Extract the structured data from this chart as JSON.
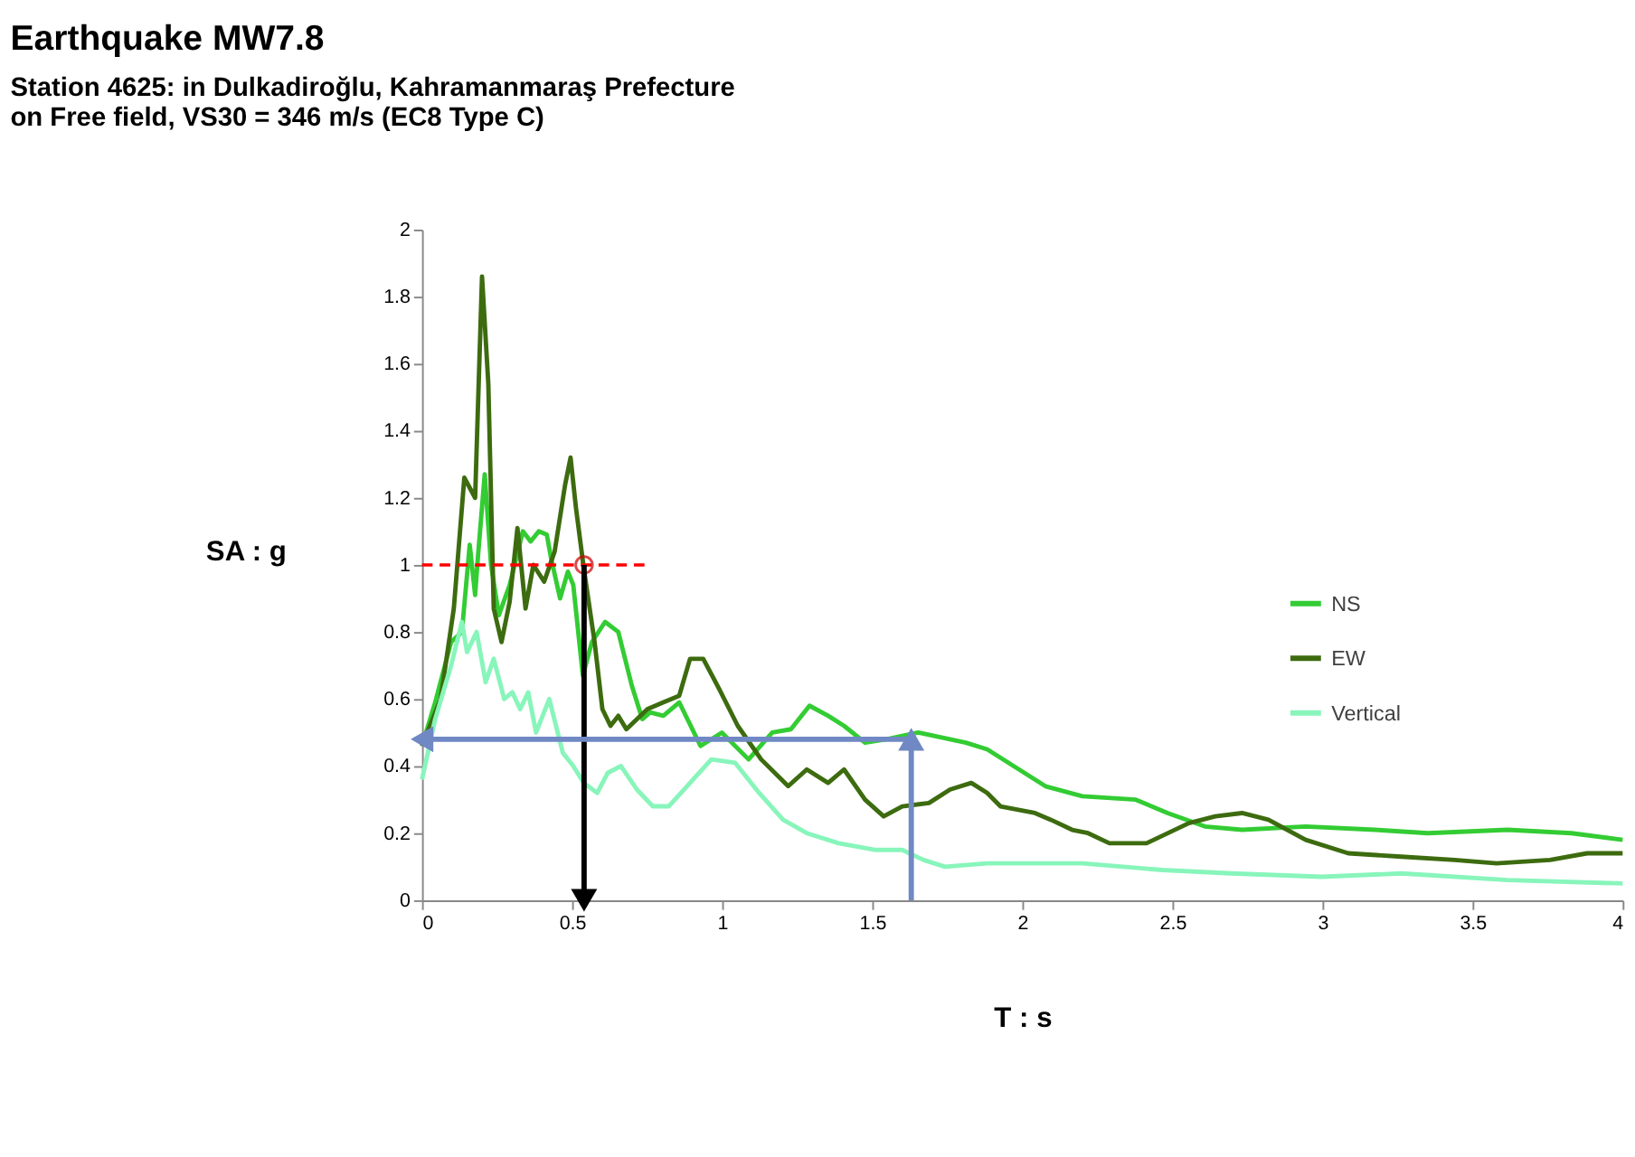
{
  "chart_data": {
    "type": "line",
    "title": "Earthquake MW7.8",
    "subtitle": [
      "Station 4625: in Dulkadiroğlu, Kahramanmaraş Prefecture",
      "on Free field, VS30 = 346 m/s (EC8 Type C)"
    ],
    "xlabel": "T : s",
    "ylabel": "SA : g",
    "xlim": [
      0,
      4
    ],
    "xticks": [
      0,
      0.5,
      1,
      1.5,
      2,
      2.5,
      3,
      3.5,
      4
    ],
    "ylim": [
      0,
      2
    ],
    "yticks": [
      0,
      0.2,
      0.4,
      0.6,
      0.8,
      1,
      1.2,
      1.4,
      1.6,
      1.8,
      2
    ],
    "grid": false,
    "legend": "right",
    "marker": "none",
    "line_style": "solid",
    "series": [
      {
        "name": "NS",
        "color": "#33cc33",
        "x": [
          0,
          0.044,
          0.097,
          0.133,
          0.159,
          0.177,
          0.186,
          0.209,
          0.23,
          0.256,
          0.292,
          0.336,
          0.362,
          0.389,
          0.416,
          0.43,
          0.46,
          0.486,
          0.504,
          0.536,
          0.566,
          0.61,
          0.654,
          0.699,
          0.734,
          0.76,
          0.804,
          0.857,
          0.928,
          0.999,
          1.088,
          1.167,
          1.229,
          1.291,
          1.353,
          1.406,
          1.476,
          1.547,
          1.653,
          1.812,
          1.883,
          1.971,
          2.077,
          2.2,
          2.378,
          2.484,
          2.608,
          2.732,
          2.944,
          3.175,
          3.351,
          3.617,
          3.829,
          4
        ],
        "values": [
          0.46,
          0.59,
          0.77,
          0.8,
          1.06,
          0.91,
          1.02,
          1.27,
          1.0,
          0.85,
          0.94,
          1.1,
          1.07,
          1.1,
          1.09,
          1.02,
          0.9,
          0.98,
          0.94,
          0.67,
          0.77,
          0.83,
          0.8,
          0.64,
          0.54,
          0.56,
          0.55,
          0.59,
          0.46,
          0.5,
          0.42,
          0.5,
          0.51,
          0.58,
          0.55,
          0.52,
          0.47,
          0.48,
          0.5,
          0.47,
          0.45,
          0.4,
          0.34,
          0.31,
          0.3,
          0.26,
          0.22,
          0.21,
          0.22,
          0.21,
          0.2,
          0.21,
          0.2,
          0.18
        ]
      },
      {
        "name": "EW",
        "color": "#3d6b0f",
        "x": [
          0,
          0.062,
          0.106,
          0.141,
          0.177,
          0.2,
          0.221,
          0.239,
          0.265,
          0.292,
          0.318,
          0.345,
          0.371,
          0.407,
          0.442,
          0.477,
          0.495,
          0.513,
          0.539,
          0.575,
          0.601,
          0.628,
          0.654,
          0.681,
          0.751,
          0.804,
          0.857,
          0.893,
          0.937,
          0.99,
          1.052,
          1.13,
          1.22,
          1.282,
          1.353,
          1.406,
          1.476,
          1.538,
          1.6,
          1.689,
          1.759,
          1.83,
          1.883,
          1.927,
          2.042,
          2.095,
          2.166,
          2.219,
          2.29,
          2.414,
          2.555,
          2.643,
          2.732,
          2.82,
          2.944,
          3.086,
          3.263,
          3.44,
          3.58,
          3.758,
          3.882,
          4
        ],
        "values": [
          0.46,
          0.6,
          0.87,
          1.26,
          1.2,
          1.86,
          1.54,
          0.87,
          0.77,
          0.89,
          1.11,
          0.87,
          1.0,
          0.95,
          1.04,
          1.24,
          1.32,
          1.17,
          0.99,
          0.77,
          0.57,
          0.52,
          0.55,
          0.51,
          0.57,
          0.59,
          0.61,
          0.72,
          0.72,
          0.63,
          0.52,
          0.42,
          0.34,
          0.39,
          0.35,
          0.39,
          0.3,
          0.25,
          0.28,
          0.29,
          0.33,
          0.35,
          0.32,
          0.28,
          0.26,
          0.24,
          0.21,
          0.2,
          0.17,
          0.17,
          0.23,
          0.25,
          0.26,
          0.24,
          0.18,
          0.14,
          0.13,
          0.12,
          0.11,
          0.12,
          0.14,
          0.14
        ]
      },
      {
        "name": "Vertical",
        "color": "#88f5bb",
        "x": [
          0,
          0.044,
          0.097,
          0.133,
          0.15,
          0.182,
          0.212,
          0.239,
          0.274,
          0.301,
          0.327,
          0.354,
          0.38,
          0.424,
          0.469,
          0.504,
          0.539,
          0.584,
          0.619,
          0.663,
          0.716,
          0.769,
          0.822,
          0.893,
          0.964,
          1.043,
          1.123,
          1.203,
          1.282,
          1.388,
          1.512,
          1.6,
          1.671,
          1.742,
          1.883,
          2.06,
          2.2,
          2.467,
          2.696,
          2.997,
          3.263,
          3.617,
          4
        ],
        "values": [
          0.36,
          0.54,
          0.7,
          0.83,
          0.74,
          0.8,
          0.65,
          0.72,
          0.6,
          0.62,
          0.57,
          0.62,
          0.5,
          0.6,
          0.44,
          0.4,
          0.35,
          0.32,
          0.38,
          0.4,
          0.33,
          0.28,
          0.28,
          0.35,
          0.42,
          0.41,
          0.32,
          0.24,
          0.2,
          0.17,
          0.15,
          0.15,
          0.12,
          0.1,
          0.11,
          0.11,
          0.11,
          0.09,
          0.08,
          0.07,
          0.08,
          0.06,
          0.05
        ]
      },
      {
        "type": "line",
        "color": "#ff0000",
        "line_style": "dashed",
        "x": [
          0,
          0.75
        ],
        "values": [
          1,
          1
        ]
      },
      {
        "type": "scatter",
        "color": "#cc0000",
        "marker": "circle",
        "x": [
          0.54
        ],
        "values": [
          1
        ]
      },
      {
        "type": "line",
        "color": "#000000",
        "marker": "triangle",
        "x": [
          0.54,
          0.54
        ],
        "values": [
          1,
          0
        ]
      },
      {
        "type": "line",
        "color": "#7088c4",
        "marker": "triangle",
        "x": [
          1.63,
          1.63
        ],
        "values": [
          0,
          0.48
        ]
      },
      {
        "type": "line",
        "color": "#7088c4",
        "marker": "triangle",
        "x": [
          1.63,
          0
        ],
        "values": [
          0.48,
          0.48
        ]
      }
    ]
  }
}
